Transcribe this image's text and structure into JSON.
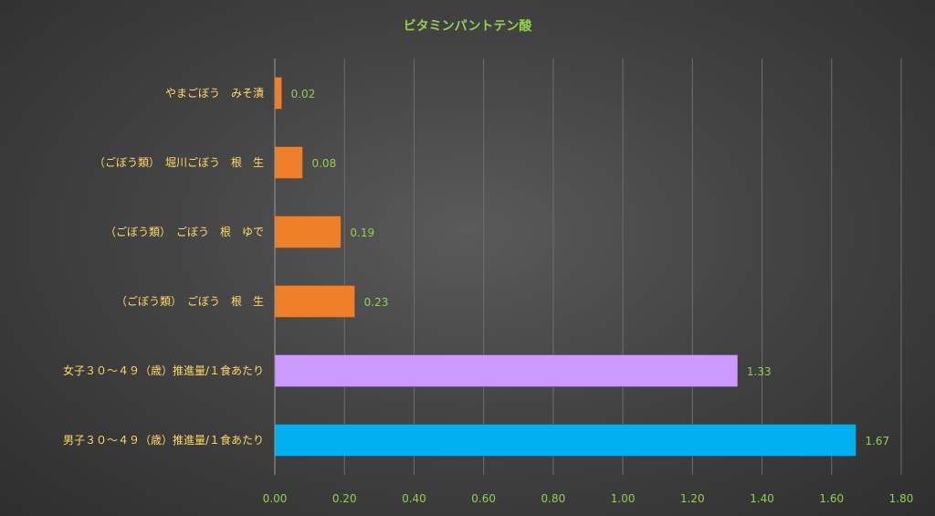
{
  "chart_data": {
    "type": "bar",
    "orientation": "horizontal",
    "title": "ビタミンパントテン酸",
    "xlabel": "",
    "ylabel": "",
    "categories": [
      "やまごぼう　みそ漬",
      "（ごぼう類）　堀川ごぼう　根　生",
      "（ごぼう類）　ごぼう　根　ゆで",
      "（ごぼう類）　ごぼう　根　生",
      "女子３０～４９（歳）推進量/１食あたり",
      "男子３０～４９（歳）推進量/１食あたり"
    ],
    "values": [
      0.02,
      0.08,
      0.19,
      0.23,
      1.33,
      1.67
    ],
    "value_labels": [
      "0.02",
      "0.08",
      "0.19",
      "0.23",
      "1.33",
      "1.67"
    ],
    "bar_colors": [
      "#f07f2a",
      "#f07f2a",
      "#f07f2a",
      "#f07f2a",
      "#cc99ff",
      "#00b0f0"
    ],
    "xlim": [
      0,
      1.8
    ],
    "ticks": [
      "0.00",
      "0.20",
      "0.40",
      "0.60",
      "0.80",
      "1.00",
      "1.20",
      "1.40",
      "1.60",
      "1.80"
    ],
    "grid": true,
    "legend": "none"
  }
}
